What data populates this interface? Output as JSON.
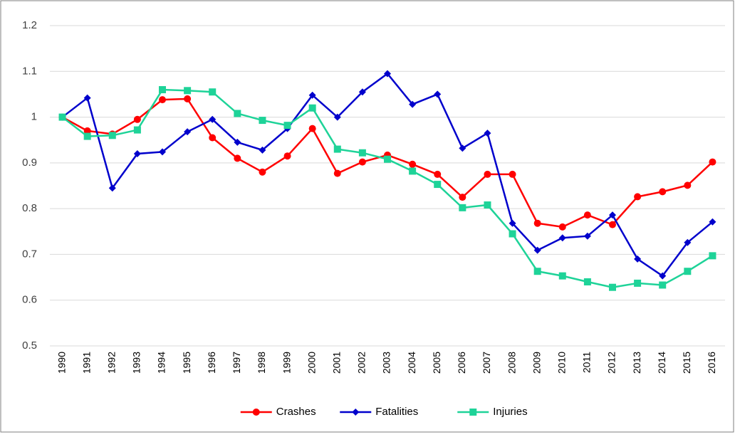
{
  "chart_data": {
    "type": "line",
    "categories": [
      "1990",
      "1991",
      "1992",
      "1993",
      "1994",
      "1995",
      "1996",
      "1997",
      "1998",
      "1999",
      "2000",
      "2001",
      "2002",
      "2003",
      "2004",
      "2005",
      "2006",
      "2007",
      "2008",
      "2009",
      "2010",
      "2011",
      "2012",
      "2013",
      "2014",
      "2015",
      "2016"
    ],
    "series": [
      {
        "name": "Crashes",
        "color": "#ff0000",
        "marker": "circle",
        "values": [
          1.0,
          0.97,
          0.963,
          0.995,
          1.038,
          1.04,
          0.955,
          0.91,
          0.88,
          0.915,
          0.975,
          0.877,
          0.902,
          0.917,
          0.897,
          0.875,
          0.825,
          0.875,
          0.875,
          0.768,
          0.76,
          0.786,
          0.765,
          0.826,
          0.837,
          0.851,
          0.902
        ]
      },
      {
        "name": "Fatalities",
        "color": "#0000cc",
        "marker": "diamond",
        "values": [
          1.0,
          1.042,
          0.845,
          0.92,
          0.924,
          0.968,
          0.995,
          0.945,
          0.928,
          0.975,
          1.048,
          1.0,
          1.055,
          1.095,
          1.028,
          1.05,
          0.932,
          0.965,
          0.768,
          0.709,
          0.736,
          0.74,
          0.786,
          0.69,
          0.653,
          0.726,
          0.771
        ]
      },
      {
        "name": "Injuries",
        "color": "#1ed398",
        "marker": "square",
        "values": [
          1.0,
          0.958,
          0.96,
          0.972,
          1.06,
          1.058,
          1.055,
          1.008,
          0.993,
          0.982,
          1.02,
          0.93,
          0.922,
          0.908,
          0.882,
          0.853,
          0.802,
          0.808,
          0.745,
          0.663,
          0.653,
          0.64,
          0.628,
          0.637,
          0.633,
          0.663,
          0.697
        ]
      }
    ],
    "ylim": [
      0.5,
      1.2
    ],
    "yticks": [
      0.5,
      0.6,
      0.7,
      0.8,
      0.9,
      1,
      1.1,
      1.2
    ],
    "grid": true,
    "legend": "bottom"
  }
}
